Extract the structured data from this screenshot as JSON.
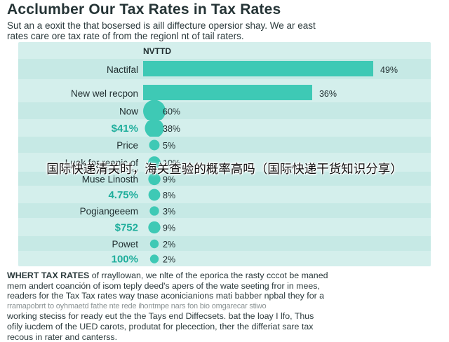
{
  "colors": {
    "bar": "#3ec9b5",
    "row_light": "#d4efec",
    "row_dark": "#c6e9e5",
    "highlight_label": "#1fae9c",
    "text": "#1f2d2f"
  },
  "footer": {
    "lead_bold": "WHERT TAX RATES",
    "lines": [
      " of rrayllowan, we nlte of the eporica the rasty cccot be maned",
      "mem andert coanción of isom teply deed's apers of the wate seeting fror in mees,",
      "readers for the Tax Tax rates way tnase aconicianions mati babber npbal they for a",
      "working steciss for ready eut the the Tays end Diffecsets. bat the loay I lfo, Thus",
      "ofily iucdem of the UED carots, produtat for plecection, ther the differiat sare tax",
      "recous in rater and canterss."
    ],
    "faint_line": "rramapobrrt to oyhmaetd fathe nte rede ihontmpe nars fon bio omgarecar stiwo"
  },
  "overlay": {
    "text": "国际快递清关时，海关查验的概率高吗（国际快递干货知识分享）"
  },
  "chart_data": {
    "type": "bar",
    "title": "Acclumber Our Tax Rates in Tax Rates",
    "subtitle_lines": [
      "Sut an a eoxit the that bosersed is aill diffecture opersior shay. We ar east",
      "rates care ore tax rate of from the regionl nt of tail raters."
    ],
    "column_header": "NVTTD",
    "categories": [
      "Nactifal",
      "New wel recpon",
      "Now",
      "$41%",
      "Price",
      "Luak for reanic of",
      "Muse Linosth",
      "4.75%",
      "Pogiangeeem",
      "$752",
      "Powet",
      "100%"
    ],
    "highlighted": [
      false,
      false,
      false,
      true,
      false,
      false,
      false,
      true,
      false,
      true,
      false,
      true
    ],
    "category_sublabels": [
      "",
      "",
      "",
      "",
      "",
      "Guark for grosiisy",
      "",
      "",
      "",
      "",
      "",
      ""
    ],
    "values": [
      49,
      36,
      60,
      38,
      5,
      10,
      9,
      8,
      3,
      9,
      2,
      2
    ],
    "value_labels": [
      "49%",
      "36%",
      "60%",
      "38%",
      "5%",
      "10%",
      "9%",
      "8%",
      "3%",
      "9%",
      "2%",
      "2%"
    ],
    "shape": [
      "bar",
      "bar",
      "circle",
      "circle",
      "circle",
      "circle",
      "circle",
      "circle",
      "circle",
      "circle",
      "circle",
      "circle"
    ],
    "xlabel": "",
    "ylabel": "",
    "grid": false,
    "legend": "none"
  }
}
